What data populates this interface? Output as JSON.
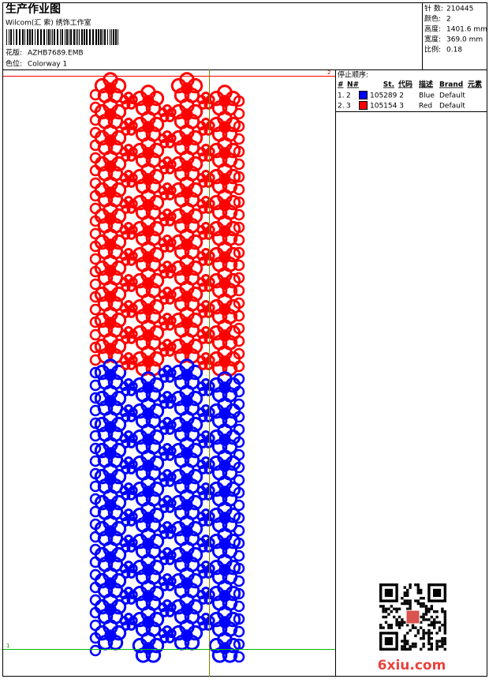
{
  "header": {
    "title": "生产作业图",
    "company": "Wilcom(汇 索) 绣饰工作室",
    "design_label": "花版:",
    "design": "AZHB7689.EMB",
    "colorway_label": "色位:",
    "colorway": "Colorway 1"
  },
  "stats": [
    {
      "label": "针 数:",
      "value": "210445"
    },
    {
      "label": "颜色:",
      "value": "2"
    },
    {
      "label": "高度:",
      "value": "1401.6 mm"
    },
    {
      "label": "宽度:",
      "value": "369.0 mm"
    },
    {
      "label": "比例:",
      "value": "0.18"
    }
  ],
  "stop_sequence": {
    "title": "停止顺序:",
    "columns": [
      "#",
      "N#",
      "St.",
      "代码",
      "描述",
      "Brand",
      "元素"
    ],
    "rows": [
      {
        "index": "1.",
        "needle": "2",
        "color": "#0000ff",
        "stitches": 105289,
        "code": "2",
        "description": "Blue",
        "brand": "Default"
      },
      {
        "index": "2.",
        "needle": "3",
        "color": "#ff0000",
        "stitches": 105154,
        "code": "3",
        "description": "Red",
        "brand": "Default"
      }
    ]
  },
  "markers": {
    "top": "2",
    "bottom": "1"
  },
  "watermark": "6xiu.com"
}
